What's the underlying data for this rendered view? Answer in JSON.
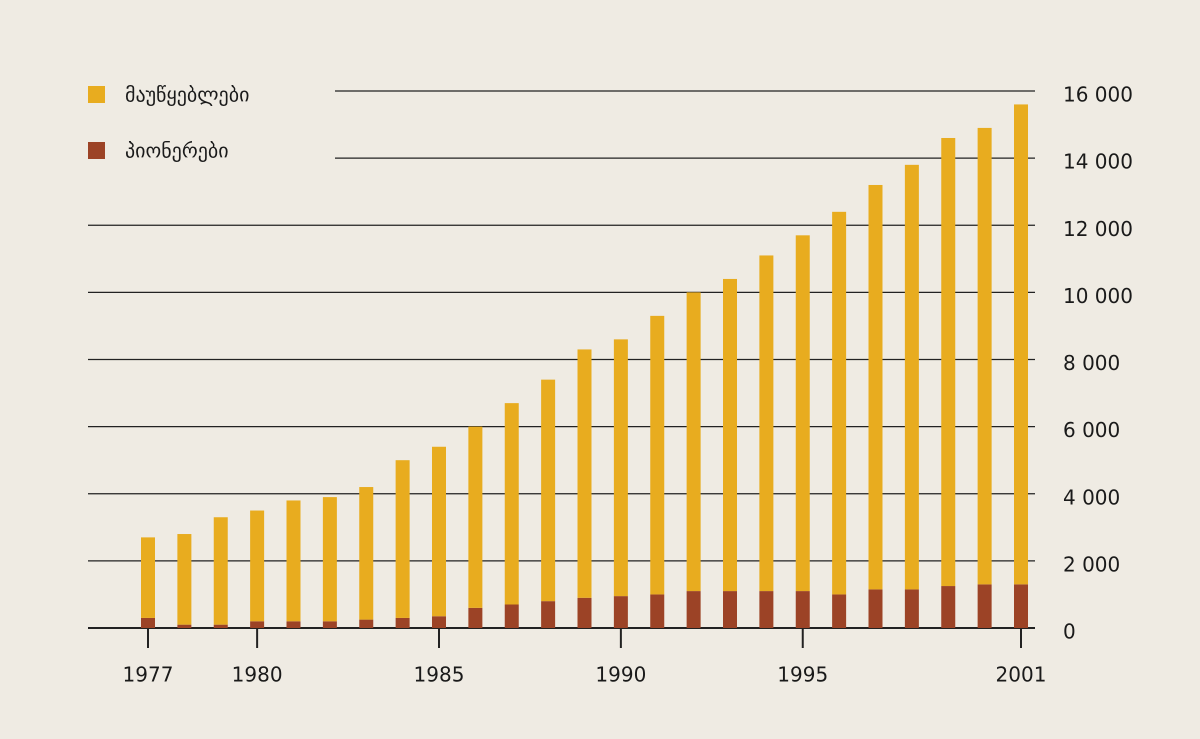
{
  "chart_data": {
    "type": "stacked_bar",
    "categories": [
      "1977",
      null,
      null,
      "1980",
      null,
      null,
      null,
      null,
      "1985",
      null,
      null,
      null,
      null,
      "1990",
      null,
      null,
      null,
      null,
      "1995",
      null,
      null,
      null,
      null,
      null,
      "2001"
    ],
    "series": [
      {
        "name": "პიონერები",
        "color": "#9c4326",
        "values": [
          300,
          100,
          100,
          200,
          200,
          200,
          250,
          300,
          350,
          600,
          700,
          800,
          900,
          950,
          1000,
          1100,
          1100,
          1100,
          1100,
          1000,
          1150,
          1150,
          1250,
          1300,
          1300
        ]
      },
      {
        "name": "მაუწყებლები",
        "color": "#e8ac1f",
        "values": [
          2400,
          2700,
          3200,
          3300,
          3600,
          3700,
          3950,
          4700,
          5050,
          5400,
          6000,
          6600,
          7400,
          7650,
          8300,
          8900,
          9300,
          10000,
          10600,
          11400,
          12050,
          12650,
          13350,
          13600,
          14300
        ]
      }
    ],
    "ylim": [
      0,
      16000
    ],
    "yticks": [
      0,
      {
        "value": 2000,
        "label": "2 000"
      },
      {
        "value": 4000,
        "label": "4 000"
      },
      {
        "value": 6000,
        "label": "6 000"
      },
      {
        "value": 8000,
        "label": "8 000"
      },
      {
        "value": 10000,
        "label": "10 000"
      },
      {
        "value": 12000,
        "label": "12 000"
      },
      {
        "value": 14000,
        "label": "14 000"
      },
      {
        "value": 16000,
        "label": "16 000"
      }
    ],
    "y_axis_side": "right",
    "grid": true,
    "legend": "top-left"
  }
}
